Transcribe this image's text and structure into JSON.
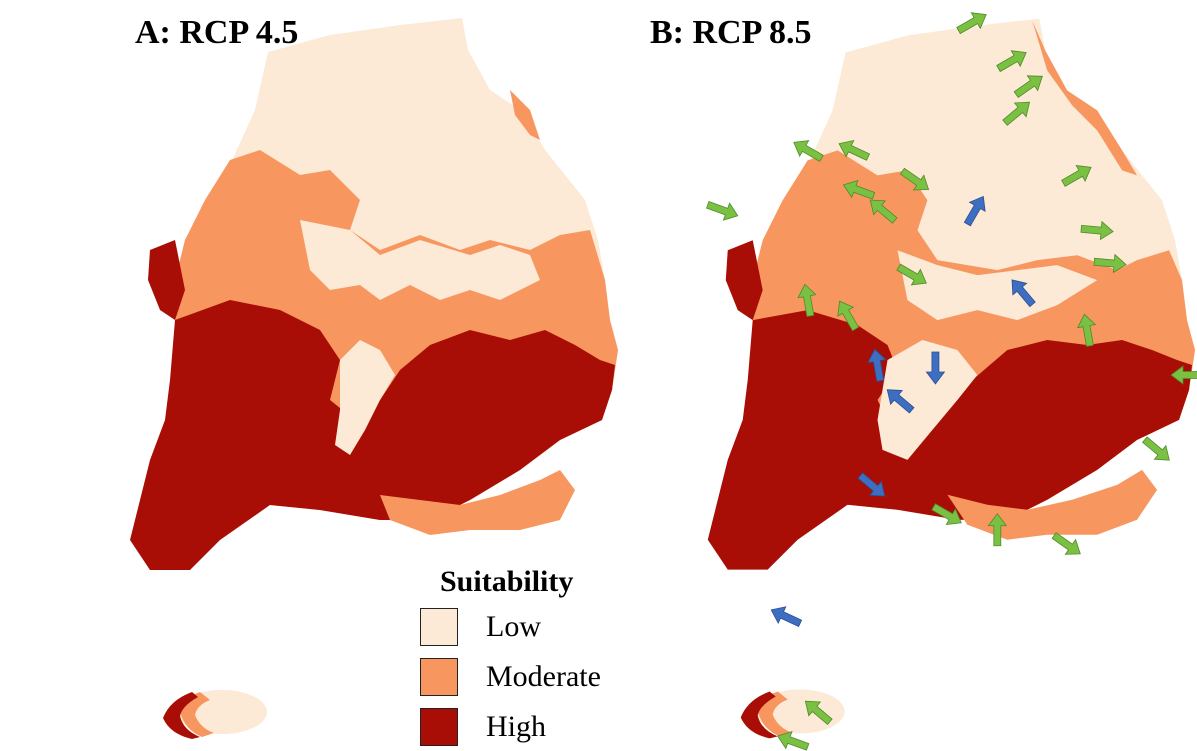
{
  "panels": [
    {
      "id": "A",
      "title": "A: RCP 4.5"
    },
    {
      "id": "B",
      "title": "B: RCP 8.5"
    }
  ],
  "legend": {
    "title": "Suitability",
    "items": [
      {
        "label": "Low",
        "color": "#FCE9D6"
      },
      {
        "label": "Moderate",
        "color": "#F7975F"
      },
      {
        "label": "High",
        "color": "#A80E06"
      }
    ]
  },
  "arrow_colors": {
    "increase": "#7AC043",
    "decrease": "#3E6EC2"
  }
}
